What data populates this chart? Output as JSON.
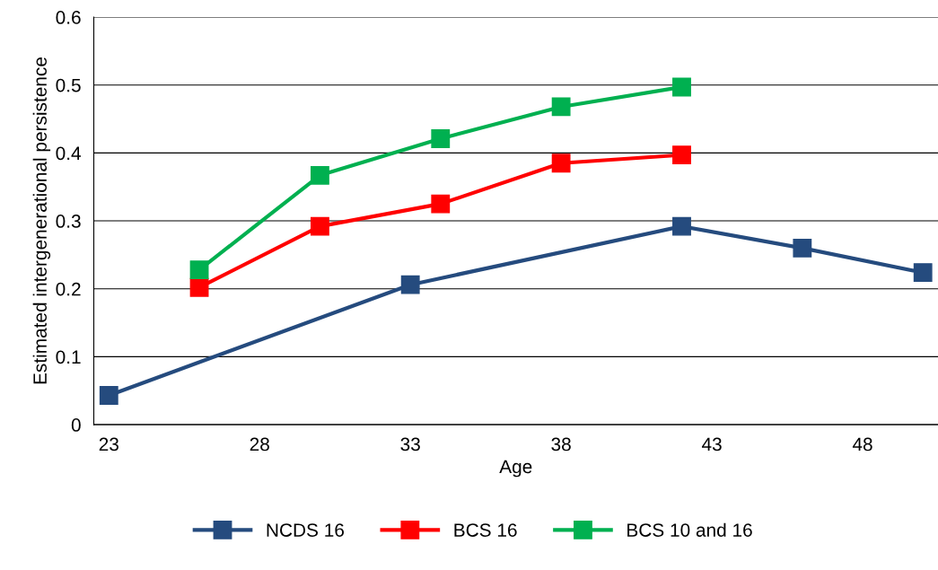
{
  "chart_data": {
    "type": "line",
    "xlabel": "Age",
    "ylabel": "Estimated intergenerational persistence",
    "xlim": [
      22.5,
      50.5
    ],
    "xticks": [
      23,
      28,
      33,
      38,
      43,
      48
    ],
    "ylim": [
      0,
      0.6
    ],
    "yticks": [
      0,
      0.1,
      0.2,
      0.3,
      0.4,
      0.5,
      0.6
    ],
    "grid": "y",
    "legend": "bottom",
    "marker": "square",
    "line_style": "solid",
    "series": [
      {
        "name": "NCDS 16",
        "color": "#254b7e",
        "x": [
          23,
          33,
          42,
          46,
          50
        ],
        "values": [
          0.043,
          0.206,
          0.292,
          0.26,
          0.224
        ]
      },
      {
        "name": "BCS 16",
        "color": "#ff0000",
        "x": [
          26,
          30,
          34,
          38,
          42
        ],
        "values": [
          0.202,
          0.292,
          0.325,
          0.385,
          0.397
        ]
      },
      {
        "name": "BCS 10 and 16",
        "color": "#00b050",
        "x": [
          26,
          30,
          34,
          38,
          42
        ],
        "values": [
          0.228,
          0.367,
          0.421,
          0.468,
          0.497
        ]
      }
    ]
  }
}
